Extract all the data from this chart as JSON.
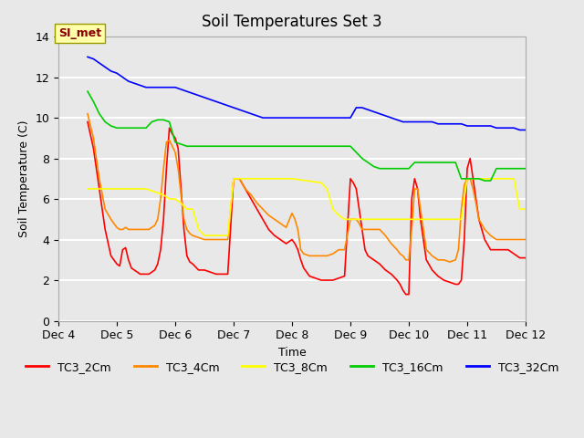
{
  "title": "Soil Temperatures Set 3",
  "xlabel": "Time",
  "ylabel": "Soil Temperature (C)",
  "xlim": [
    4.0,
    12.0
  ],
  "ylim": [
    0,
    14
  ],
  "yticks": [
    0,
    2,
    4,
    6,
    8,
    10,
    12,
    14
  ],
  "xtick_labels": [
    "Dec 4",
    "Dec 5",
    "Dec 6",
    "Dec 7",
    "Dec 8",
    "Dec 9",
    "Dec 10",
    "Dec 11",
    "Dec 12"
  ],
  "xtick_positions": [
    4,
    5,
    6,
    7,
    8,
    9,
    10,
    11,
    12
  ],
  "background_color": "#e8e8e8",
  "plot_bg_color": "#e8e8e8",
  "grid_color": "#ffffff",
  "annotation_text": "SI_met",
  "annotation_color": "#8b0000",
  "annotation_bg": "#ffffaa",
  "series": {
    "TC3_2Cm": {
      "color": "#ff0000",
      "x": [
        4.5,
        4.6,
        4.7,
        4.8,
        4.9,
        5.0,
        5.05,
        5.1,
        5.15,
        5.2,
        5.25,
        5.3,
        5.35,
        5.4,
        5.45,
        5.5,
        5.55,
        5.6,
        5.65,
        5.7,
        5.75,
        5.8,
        5.85,
        5.9,
        5.95,
        6.0,
        6.05,
        6.1,
        6.15,
        6.2,
        6.25,
        6.3,
        6.4,
        6.5,
        6.6,
        6.7,
        6.8,
        6.9,
        7.0,
        7.1,
        7.2,
        7.3,
        7.4,
        7.5,
        7.6,
        7.7,
        7.8,
        7.9,
        8.0,
        8.05,
        8.1,
        8.15,
        8.2,
        8.3,
        8.4,
        8.5,
        8.6,
        8.7,
        8.8,
        8.9,
        9.0,
        9.05,
        9.1,
        9.15,
        9.2,
        9.25,
        9.3,
        9.4,
        9.5,
        9.6,
        9.7,
        9.8,
        9.85,
        9.9,
        9.95,
        10.0,
        10.05,
        10.1,
        10.15,
        10.2,
        10.3,
        10.4,
        10.5,
        10.6,
        10.7,
        10.8,
        10.85,
        10.9,
        10.95,
        11.0,
        11.05,
        11.1,
        11.15,
        11.2,
        11.3,
        11.4,
        11.5,
        11.6,
        11.7,
        11.8,
        11.85,
        11.9,
        11.95,
        12.0
      ],
      "y": [
        9.8,
        8.5,
        6.5,
        4.5,
        3.2,
        2.8,
        2.7,
        3.5,
        3.6,
        3.0,
        2.6,
        2.5,
        2.4,
        2.3,
        2.3,
        2.3,
        2.3,
        2.4,
        2.5,
        2.8,
        3.5,
        5.0,
        7.5,
        9.5,
        9.2,
        9.0,
        8.5,
        6.5,
        4.5,
        3.2,
        2.9,
        2.8,
        2.5,
        2.5,
        2.4,
        2.3,
        2.3,
        2.3,
        7.0,
        7.0,
        6.5,
        6.0,
        5.5,
        5.0,
        4.5,
        4.2,
        4.0,
        3.8,
        4.0,
        3.8,
        3.5,
        3.0,
        2.6,
        2.2,
        2.1,
        2.0,
        2.0,
        2.0,
        2.1,
        2.2,
        7.0,
        6.8,
        6.5,
        5.5,
        4.5,
        3.5,
        3.2,
        3.0,
        2.8,
        2.5,
        2.3,
        2.0,
        1.8,
        1.5,
        1.3,
        1.3,
        6.0,
        7.0,
        6.5,
        5.0,
        3.0,
        2.5,
        2.2,
        2.0,
        1.9,
        1.8,
        1.8,
        2.0,
        4.0,
        7.5,
        8.0,
        7.0,
        6.0,
        5.0,
        4.0,
        3.5,
        3.5,
        3.5,
        3.5,
        3.3,
        3.2,
        3.1,
        3.1,
        3.1
      ]
    },
    "TC3_4Cm": {
      "color": "#ff8800",
      "x": [
        4.5,
        4.6,
        4.7,
        4.8,
        4.9,
        5.0,
        5.05,
        5.1,
        5.15,
        5.2,
        5.25,
        5.3,
        5.35,
        5.4,
        5.45,
        5.5,
        5.55,
        5.6,
        5.65,
        5.7,
        5.75,
        5.8,
        5.85,
        5.9,
        5.95,
        6.0,
        6.05,
        6.1,
        6.15,
        6.2,
        6.25,
        6.3,
        6.4,
        6.5,
        6.6,
        6.7,
        6.8,
        6.9,
        7.0,
        7.1,
        7.2,
        7.3,
        7.4,
        7.5,
        7.6,
        7.7,
        7.8,
        7.9,
        8.0,
        8.05,
        8.1,
        8.15,
        8.2,
        8.3,
        8.4,
        8.5,
        8.6,
        8.7,
        8.8,
        8.9,
        9.0,
        9.05,
        9.1,
        9.15,
        9.2,
        9.25,
        9.3,
        9.4,
        9.5,
        9.6,
        9.7,
        9.8,
        9.85,
        9.9,
        9.95,
        10.0,
        10.05,
        10.1,
        10.15,
        10.2,
        10.3,
        10.4,
        10.5,
        10.6,
        10.7,
        10.8,
        10.85,
        10.9,
        10.95,
        11.0,
        11.05,
        11.1,
        11.15,
        11.2,
        11.3,
        11.4,
        11.5,
        11.6,
        11.7,
        11.8,
        11.85,
        11.9,
        11.95,
        12.0
      ],
      "y": [
        10.2,
        9.0,
        7.0,
        5.5,
        5.0,
        4.6,
        4.5,
        4.5,
        4.6,
        4.5,
        4.5,
        4.5,
        4.5,
        4.5,
        4.5,
        4.5,
        4.5,
        4.6,
        4.7,
        5.0,
        6.0,
        7.5,
        8.8,
        8.9,
        8.6,
        8.3,
        7.5,
        6.2,
        5.0,
        4.5,
        4.3,
        4.2,
        4.1,
        4.0,
        4.0,
        4.0,
        4.0,
        4.0,
        7.0,
        7.0,
        6.5,
        6.2,
        5.8,
        5.5,
        5.2,
        5.0,
        4.8,
        4.6,
        5.3,
        5.0,
        4.5,
        3.5,
        3.3,
        3.2,
        3.2,
        3.2,
        3.2,
        3.3,
        3.5,
        3.5,
        5.0,
        5.0,
        5.0,
        4.8,
        4.5,
        4.5,
        4.5,
        4.5,
        4.5,
        4.2,
        3.8,
        3.5,
        3.3,
        3.2,
        3.0,
        3.0,
        4.5,
        6.5,
        6.5,
        5.5,
        3.5,
        3.2,
        3.0,
        3.0,
        2.9,
        3.0,
        3.5,
        5.5,
        6.7,
        7.0,
        7.0,
        6.5,
        5.8,
        5.0,
        4.5,
        4.2,
        4.0,
        4.0,
        4.0,
        4.0,
        4.0,
        4.0,
        4.0,
        4.0
      ]
    },
    "TC3_8Cm": {
      "color": "#ffff00",
      "x": [
        4.5,
        5.0,
        5.5,
        5.8,
        5.9,
        6.0,
        6.1,
        6.2,
        6.3,
        6.4,
        6.5,
        6.6,
        6.7,
        6.8,
        6.9,
        7.0,
        7.5,
        8.0,
        8.5,
        8.6,
        8.7,
        8.8,
        8.9,
        9.0,
        9.1,
        9.2,
        9.3,
        9.4,
        9.5,
        9.6,
        9.7,
        9.8,
        9.9,
        10.0,
        10.1,
        10.2,
        10.3,
        10.4,
        10.5,
        10.6,
        10.7,
        10.8,
        10.9,
        11.0,
        11.1,
        11.2,
        11.3,
        11.4,
        11.5,
        11.6,
        11.7,
        11.8,
        11.9,
        12.0
      ],
      "y": [
        6.5,
        6.5,
        6.5,
        6.2,
        6.0,
        6.0,
        5.8,
        5.5,
        5.5,
        4.5,
        4.2,
        4.2,
        4.2,
        4.2,
        4.2,
        7.0,
        7.0,
        7.0,
        6.8,
        6.5,
        5.5,
        5.2,
        5.0,
        5.0,
        5.0,
        5.0,
        5.0,
        5.0,
        5.0,
        5.0,
        5.0,
        5.0,
        5.0,
        5.0,
        5.0,
        5.0,
        5.0,
        5.0,
        5.0,
        5.0,
        5.0,
        5.0,
        5.0,
        7.0,
        7.0,
        7.0,
        7.0,
        7.0,
        7.0,
        7.0,
        7.0,
        7.0,
        5.5,
        5.5
      ]
    },
    "TC3_16Cm": {
      "color": "#00cc00",
      "x": [
        4.5,
        4.6,
        4.7,
        4.8,
        4.9,
        5.0,
        5.1,
        5.2,
        5.3,
        5.4,
        5.5,
        5.6,
        5.7,
        5.8,
        5.9,
        6.0,
        6.1,
        6.2,
        6.3,
        6.4,
        6.5,
        6.6,
        6.7,
        6.8,
        6.9,
        7.0,
        7.5,
        8.0,
        8.5,
        9.0,
        9.1,
        9.2,
        9.3,
        9.4,
        9.5,
        9.6,
        9.7,
        9.8,
        9.9,
        10.0,
        10.1,
        10.2,
        10.3,
        10.4,
        10.5,
        10.6,
        10.7,
        10.8,
        10.9,
        11.0,
        11.1,
        11.2,
        11.3,
        11.4,
        11.5,
        11.6,
        11.7,
        11.8,
        11.9,
        12.0
      ],
      "y": [
        11.3,
        10.8,
        10.2,
        9.8,
        9.6,
        9.5,
        9.5,
        9.5,
        9.5,
        9.5,
        9.5,
        9.8,
        9.9,
        9.9,
        9.8,
        8.8,
        8.7,
        8.6,
        8.6,
        8.6,
        8.6,
        8.6,
        8.6,
        8.6,
        8.6,
        8.6,
        8.6,
        8.6,
        8.6,
        8.6,
        8.3,
        8.0,
        7.8,
        7.6,
        7.5,
        7.5,
        7.5,
        7.5,
        7.5,
        7.5,
        7.8,
        7.8,
        7.8,
        7.8,
        7.8,
        7.8,
        7.8,
        7.8,
        7.0,
        7.0,
        7.0,
        7.0,
        6.9,
        6.9,
        7.5,
        7.5,
        7.5,
        7.5,
        7.5,
        7.5
      ]
    },
    "TC3_32Cm": {
      "color": "#0000ff",
      "x": [
        4.5,
        4.6,
        4.7,
        4.8,
        4.9,
        5.0,
        5.1,
        5.2,
        5.3,
        5.4,
        5.5,
        5.6,
        5.7,
        5.8,
        5.9,
        6.0,
        6.1,
        6.2,
        6.3,
        6.4,
        6.5,
        6.6,
        6.7,
        6.8,
        6.9,
        7.0,
        7.1,
        7.2,
        7.3,
        7.4,
        7.5,
        7.6,
        7.7,
        7.8,
        7.9,
        8.0,
        8.1,
        8.2,
        8.3,
        8.4,
        8.5,
        8.6,
        8.7,
        8.8,
        8.9,
        9.0,
        9.1,
        9.2,
        9.3,
        9.4,
        9.5,
        9.6,
        9.7,
        9.8,
        9.9,
        10.0,
        10.1,
        10.2,
        10.3,
        10.4,
        10.5,
        10.6,
        10.7,
        10.8,
        10.9,
        11.0,
        11.1,
        11.2,
        11.3,
        11.4,
        11.5,
        11.6,
        11.7,
        11.8,
        11.9,
        12.0
      ],
      "y": [
        13.0,
        12.9,
        12.7,
        12.5,
        12.3,
        12.2,
        12.0,
        11.8,
        11.7,
        11.6,
        11.5,
        11.5,
        11.5,
        11.5,
        11.5,
        11.5,
        11.4,
        11.3,
        11.2,
        11.1,
        11.0,
        10.9,
        10.8,
        10.7,
        10.6,
        10.5,
        10.4,
        10.3,
        10.2,
        10.1,
        10.0,
        10.0,
        10.0,
        10.0,
        10.0,
        10.0,
        10.0,
        10.0,
        10.0,
        10.0,
        10.0,
        10.0,
        10.0,
        10.0,
        10.0,
        10.0,
        10.5,
        10.5,
        10.4,
        10.3,
        10.2,
        10.1,
        10.0,
        9.9,
        9.8,
        9.8,
        9.8,
        9.8,
        9.8,
        9.8,
        9.7,
        9.7,
        9.7,
        9.7,
        9.7,
        9.6,
        9.6,
        9.6,
        9.6,
        9.6,
        9.5,
        9.5,
        9.5,
        9.5,
        9.4,
        9.4
      ]
    }
  },
  "legend": [
    {
      "label": "TC3_2Cm",
      "color": "#ff0000"
    },
    {
      "label": "TC3_4Cm",
      "color": "#ff8800"
    },
    {
      "label": "TC3_8Cm",
      "color": "#ffff00"
    },
    {
      "label": "TC3_16Cm",
      "color": "#00cc00"
    },
    {
      "label": "TC3_32Cm",
      "color": "#0000ff"
    }
  ]
}
